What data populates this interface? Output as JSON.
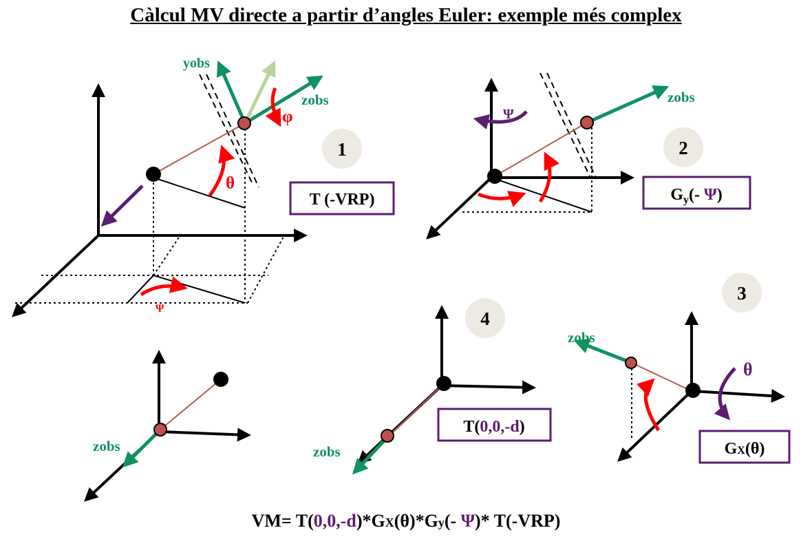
{
  "title": "Càlcul MV directe a partir d’angles Euler: exemple més complex",
  "labels": {
    "yobs": "yobs",
    "zobs": "zobs",
    "phi": "φ",
    "theta": "θ",
    "psi": "Ψ"
  },
  "steps": [
    {
      "number": "1",
      "box": "T (-VRP)"
    },
    {
      "number": "2",
      "box_main": "G",
      "box_sub": "y",
      "box_open": "(- ",
      "box_psi": "Ψ",
      "box_close": ")"
    },
    {
      "number": "3",
      "box_main": "G",
      "box_sub": "X",
      "box_arg": "(θ)"
    },
    {
      "number": "4",
      "box_prefix": "T(",
      "box_args": "0,0,-d",
      "box_suffix": ")"
    }
  ],
  "formula": {
    "p1": "VM= T(",
    "p2": "0,0,-d",
    "p3": ")*G",
    "p4": "X",
    "p5": "(θ)*G",
    "p6": "y",
    "p7": "(- ",
    "p8": "Ψ",
    "p9": ")* T(-VRP)"
  },
  "colors": {
    "axis": "#000000",
    "green": "#0f9160",
    "light_green": "#b9d49a",
    "red": "#ff0000",
    "purple": "#5b1e6e",
    "brown_line": "#b65a4e",
    "point": "#c0504d",
    "badge": "#eceae3"
  }
}
